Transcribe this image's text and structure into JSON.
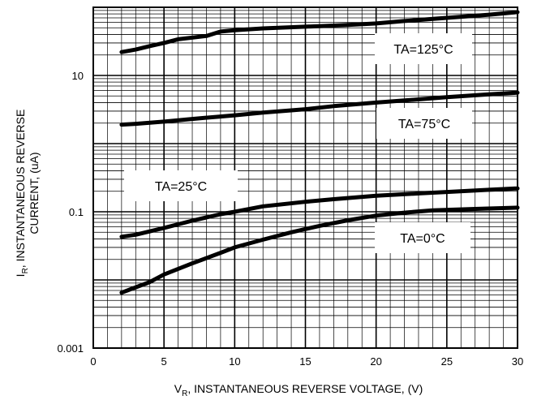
{
  "chart_data": {
    "type": "line",
    "title": "",
    "xlabel_main": "V",
    "xlabel_sub": "R",
    "xlabel_rest": ", INSTANTANEOUS REVERSE VOLTAGE, (V)",
    "ylabel_main": "I",
    "ylabel_sub": "R",
    "ylabel_rest": ", INSTANTANEOUS REVERSE",
    "ylabel_line2": "CURRENT, (uA)",
    "xlim": [
      0,
      30
    ],
    "ylim": [
      0.001,
      100
    ],
    "yscale": "log",
    "grid": "on",
    "x_ticks": [
      0,
      5,
      10,
      15,
      20,
      25,
      30
    ],
    "x_tick_labels": [
      "0",
      "5",
      "10",
      "15",
      "20",
      "25",
      "30"
    ],
    "y_ticks": [
      0.001,
      0.1,
      10
    ],
    "y_tick_labels": [
      "0.001",
      "0.1",
      "10"
    ],
    "series": [
      {
        "name": "TA=125°C",
        "x": [
          2,
          3,
          4,
          5,
          6,
          8,
          9,
          10,
          12,
          15,
          18,
          20,
          22,
          25,
          28,
          30
        ],
        "y": [
          22,
          24,
          27,
          30,
          34,
          38,
          44,
          46,
          49,
          52,
          55,
          58,
          63,
          70,
          78,
          85
        ]
      },
      {
        "name": "TA=75°C",
        "x": [
          2,
          3,
          5,
          7,
          9,
          10,
          12,
          15,
          17,
          20,
          23,
          25,
          28,
          30
        ],
        "y": [
          1.9,
          1.95,
          2.1,
          2.3,
          2.5,
          2.6,
          2.85,
          3.2,
          3.55,
          4.0,
          4.45,
          4.8,
          5.3,
          5.6
        ]
      },
      {
        "name": "TA=25°C",
        "x": [
          2,
          3,
          5,
          7,
          9,
          10,
          12,
          15,
          17,
          20,
          23,
          25,
          28,
          30
        ],
        "y": [
          0.043,
          0.046,
          0.058,
          0.074,
          0.092,
          0.1,
          0.12,
          0.14,
          0.153,
          0.172,
          0.186,
          0.195,
          0.21,
          0.22
        ]
      },
      {
        "name": "TA=0°C",
        "x": [
          2,
          3,
          4,
          5,
          7,
          9,
          10,
          12,
          14,
          16,
          18,
          20,
          22,
          24,
          27,
          30
        ],
        "y": [
          0.0065,
          0.0078,
          0.0093,
          0.012,
          0.0175,
          0.025,
          0.03,
          0.039,
          0.05,
          0.062,
          0.075,
          0.088,
          0.097,
          0.105,
          0.11,
          0.115
        ]
      }
    ],
    "legend_boxes": [
      {
        "label": "TA=125°C"
      },
      {
        "label": "TA=75°C"
      },
      {
        "label": "TA=25°C"
      },
      {
        "label": "TA=0°C"
      }
    ]
  }
}
